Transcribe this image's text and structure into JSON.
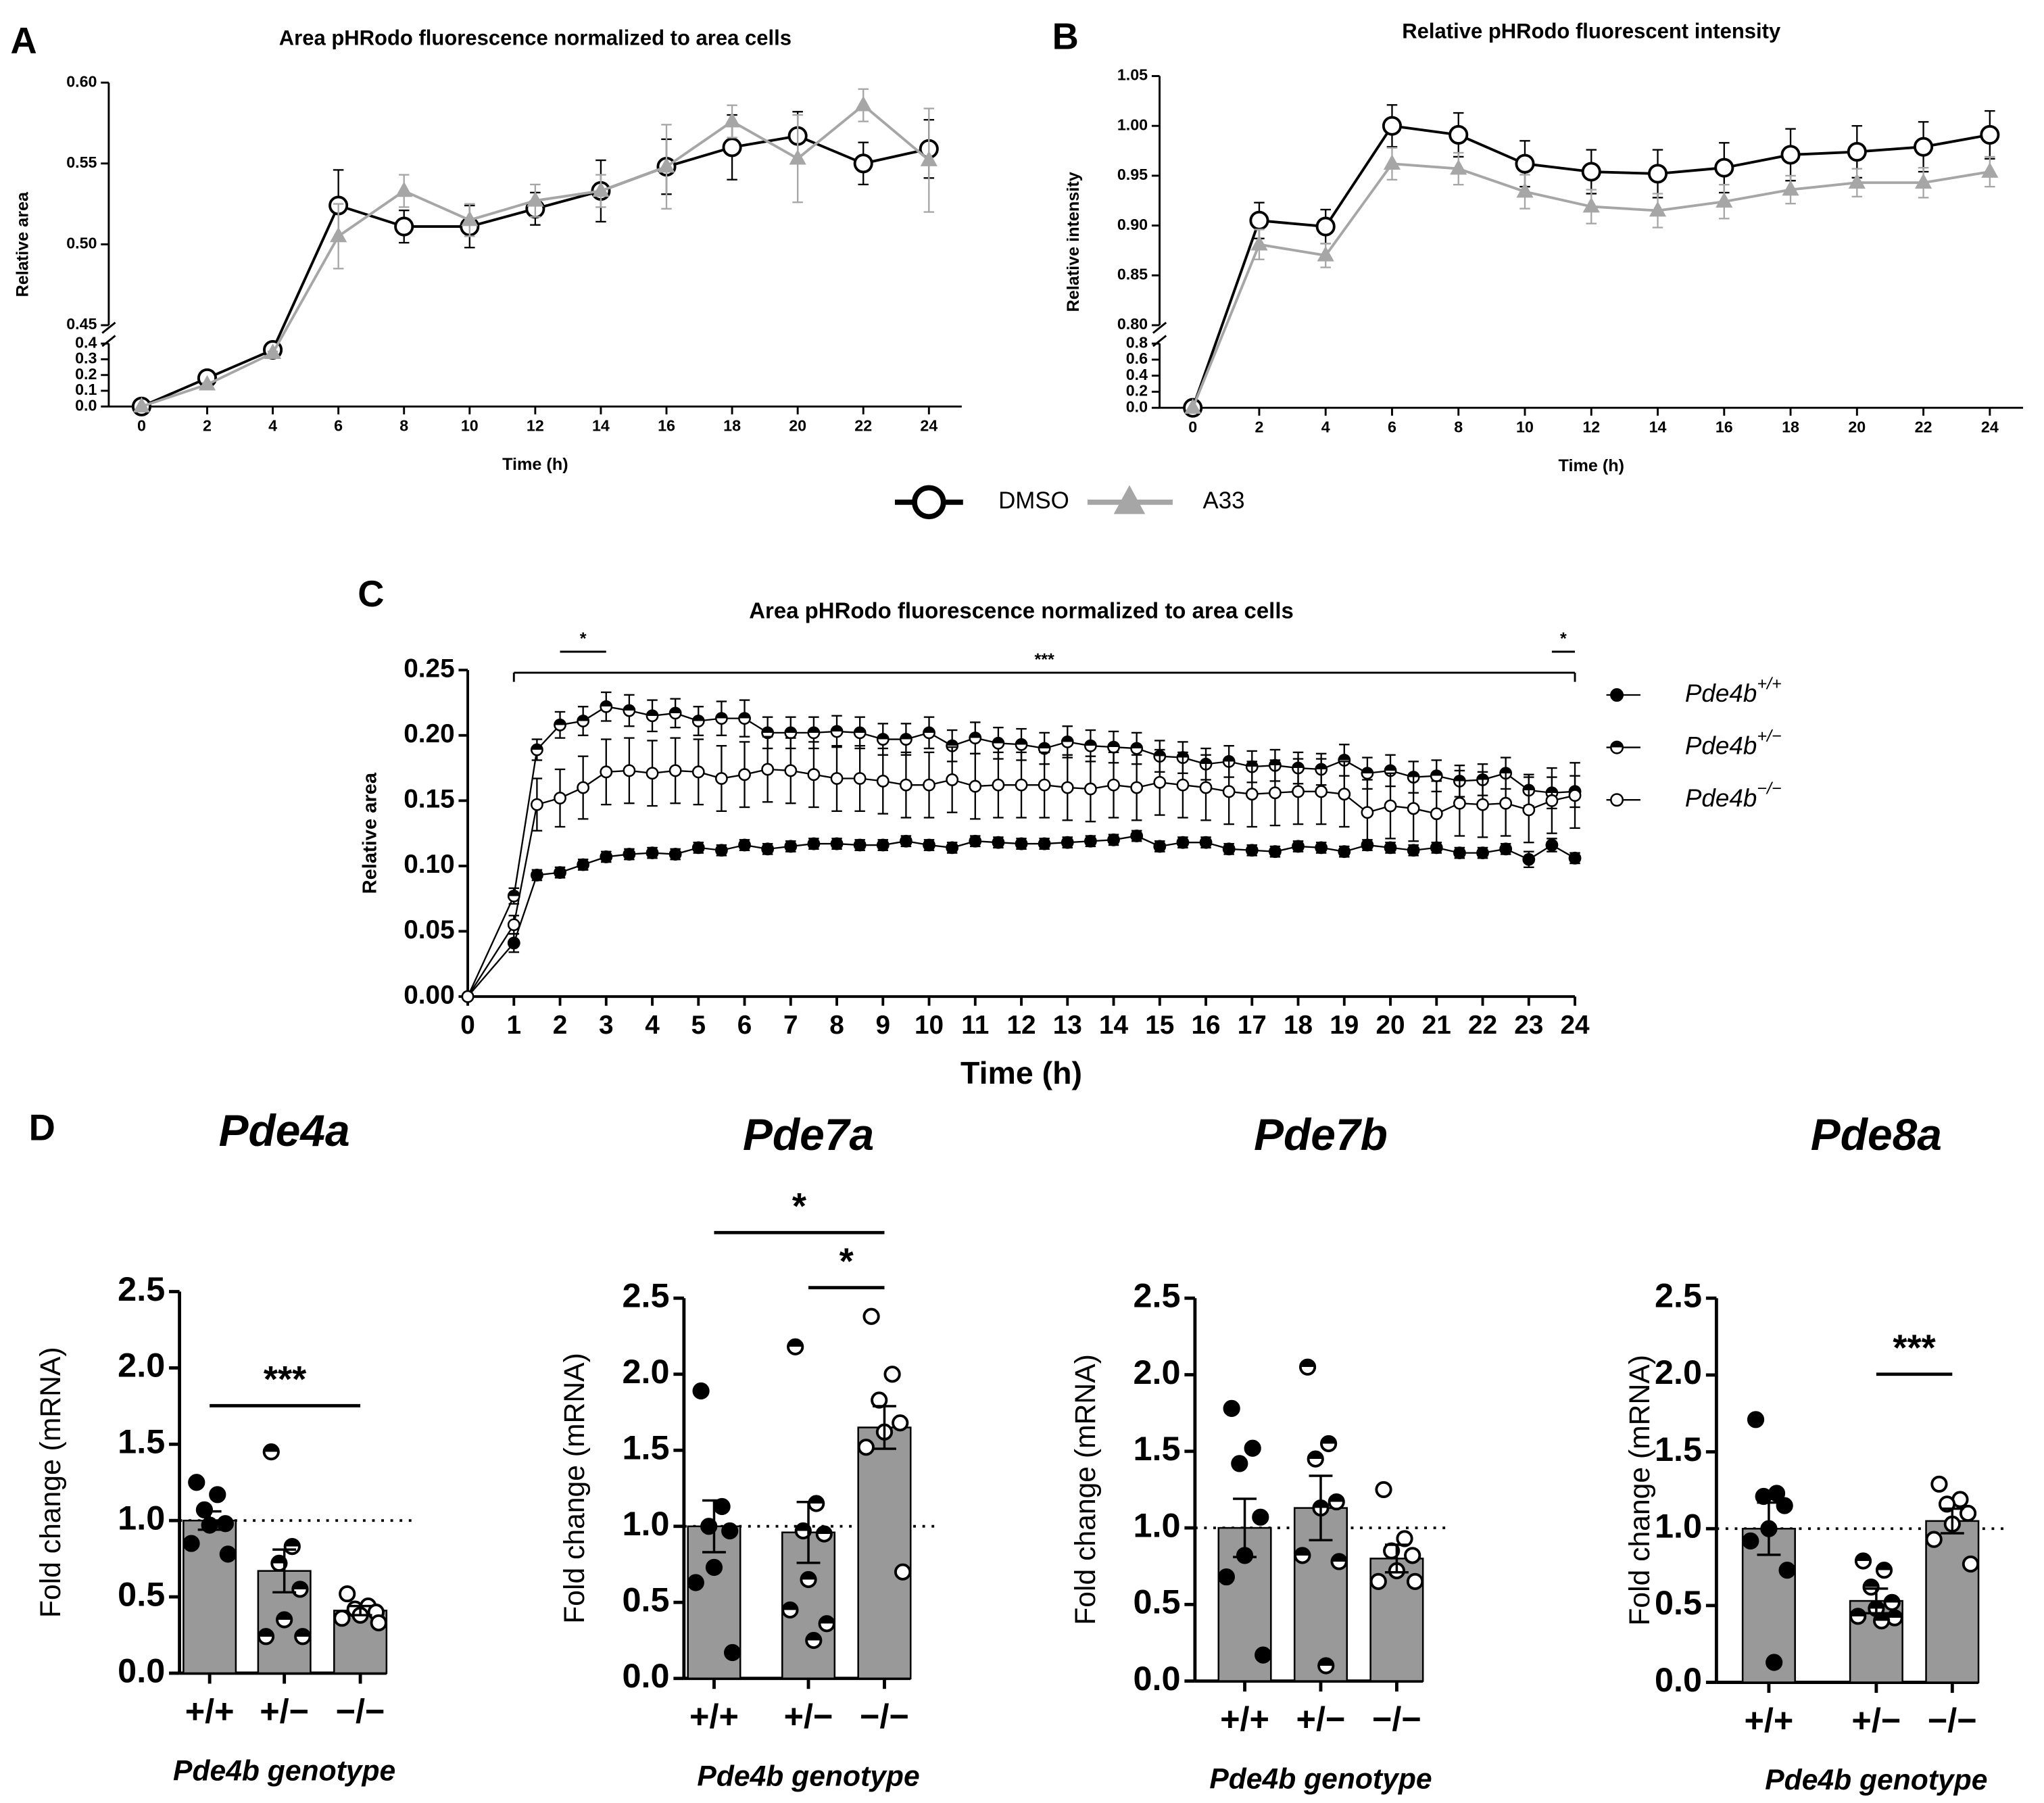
{
  "chart_data": [
    {
      "type": "line",
      "panel": "A",
      "title": "Area pHRodo fluorescence normalized to area cells",
      "x_label": "Time (h)",
      "y_label": "Relative area",
      "x": [
        0,
        2,
        4,
        6,
        8,
        10,
        12,
        14,
        16,
        18,
        20,
        22,
        24
      ],
      "xlim": [
        -1,
        25
      ],
      "xticks": [
        0,
        2,
        4,
        6,
        8,
        10,
        12,
        14,
        16,
        18,
        20,
        22,
        24
      ],
      "ysegments": [
        {
          "lim": [
            0,
            0.4
          ],
          "ticks": [
            {
              "value": 0,
              "label": "0.0"
            },
            0.1,
            0.2,
            0.3,
            0.4
          ]
        },
        {
          "lim": [
            0.45,
            0.6
          ],
          "ticks": [
            0.45,
            {
              "value": 0.5,
              "label": "0.50"
            },
            0.55,
            {
              "value": 0.6,
              "label": "0.60"
            }
          ]
        }
      ],
      "legend": "bottom",
      "series": [
        {
          "name": "DMSO",
          "color": "#000000",
          "marker": "open-circle",
          "values": [
            0,
            0.18,
            0.36,
            0.524,
            0.511,
            0.511,
            0.522,
            0.533,
            0.548,
            0.56,
            0.567,
            0.55,
            0.559
          ],
          "errors": [
            0,
            0.01,
            0.01,
            0.022,
            0.01,
            0.013,
            0.01,
            0.019,
            0.017,
            0.02,
            0.015,
            0.013,
            0.018
          ]
        },
        {
          "name": "A33",
          "color": "#a6a6a6",
          "marker": "triangle",
          "values": [
            0,
            0.14,
            0.34,
            0.505,
            0.533,
            0.515,
            0.527,
            0.533,
            0.548,
            0.576,
            0.553,
            0.586,
            0.552
          ],
          "errors": [
            0,
            0.01,
            0.01,
            0.02,
            0.01,
            0.01,
            0.01,
            0.01,
            0.026,
            0.01,
            0.027,
            0.01,
            0.032
          ]
        }
      ]
    },
    {
      "type": "line",
      "panel": "B",
      "title": "Relative pHRodo fluorescent intensity",
      "x_label": "Time (h)",
      "y_label": "Relative intensity",
      "x": [
        0,
        2,
        4,
        6,
        8,
        10,
        12,
        14,
        16,
        18,
        20,
        22,
        24
      ],
      "xlim": [
        -1,
        25
      ],
      "xticks": [
        0,
        2,
        4,
        6,
        8,
        10,
        12,
        14,
        16,
        18,
        20,
        22,
        24
      ],
      "ysegments": [
        {
          "lim": [
            0,
            0.8
          ],
          "ticks": [
            {
              "value": 0,
              "label": "0.0"
            },
            0.2,
            0.4,
            0.6,
            0.8
          ]
        },
        {
          "lim": [
            0.8,
            1.05
          ],
          "ticks": [
            {
              "value": 0.8,
              "label": "0.80"
            },
            0.85,
            {
              "value": 0.9,
              "label": "0.90"
            },
            0.95,
            {
              "value": 1,
              "label": "1.00"
            },
            1.05
          ]
        }
      ],
      "series": [
        {
          "color": "#000000",
          "marker": "open-circle",
          "values": [
            0,
            0.905,
            0.899,
            1.0,
            0.991,
            0.962,
            0.954,
            0.952,
            0.958,
            0.971,
            0.974,
            0.979,
            0.991
          ],
          "errors": [
            0,
            0.018,
            0.017,
            0.021,
            0.022,
            0.023,
            0.022,
            0.024,
            0.025,
            0.026,
            0.026,
            0.025,
            0.024
          ]
        },
        {
          "color": "#a6a6a6",
          "marker": "triangle",
          "values": [
            0,
            0.881,
            0.87,
            0.962,
            0.957,
            0.934,
            0.919,
            0.915,
            0.924,
            0.936,
            0.943,
            0.943,
            0.954
          ],
          "errors": [
            0,
            0.015,
            0.012,
            0.016,
            0.016,
            0.017,
            0.017,
            0.017,
            0.017,
            0.014,
            0.014,
            0.015,
            0.015
          ]
        }
      ]
    },
    {
      "type": "line",
      "panel": "C",
      "title": "Area pHRodo fluorescence normalized to area cells",
      "x_label": "Time (h)",
      "y_label": "Relative area",
      "x": [
        0,
        1,
        1.5,
        2,
        2.5,
        3,
        3.5,
        4,
        4.5,
        5,
        5.5,
        6,
        6.5,
        7,
        7.5,
        8,
        8.5,
        9,
        9.5,
        10,
        10.5,
        11,
        11.5,
        12,
        12.5,
        13,
        13.5,
        14,
        14.5,
        15,
        15.5,
        16,
        16.5,
        17,
        17.5,
        18,
        18.5,
        19,
        19.5,
        20,
        20.5,
        21,
        21.5,
        22,
        22.5,
        23,
        23.5,
        24
      ],
      "xlim": [
        0,
        24
      ],
      "xticks": [
        0,
        1,
        2,
        3,
        4,
        5,
        6,
        7,
        8,
        9,
        10,
        11,
        12,
        13,
        14,
        15,
        16,
        17,
        18,
        19,
        20,
        21,
        22,
        23,
        24
      ],
      "ylim": [
        0,
        0.25
      ],
      "yticks": [
        {
          "value": 0,
          "label": "0.00"
        },
        0.05,
        {
          "value": 0.1,
          "label": "0.10"
        },
        0.15,
        {
          "value": 0.2,
          "label": "0.20"
        },
        0.25
      ],
      "legend": "right",
      "annotations": [
        {
          "label": "*",
          "x": [
            2,
            3
          ]
        },
        {
          "label": "***",
          "x": [
            1,
            24
          ]
        },
        {
          "label": "*",
          "x": [
            23.5,
            24
          ]
        }
      ],
      "series": [
        {
          "name": "Pde4b",
          "genotype": "+/+",
          "color": "#000000",
          "marker": "filled-circle",
          "values": [
            0,
            0.041,
            0.093,
            0.095,
            0.101,
            0.107,
            0.109,
            0.11,
            0.109,
            0.114,
            0.112,
            0.116,
            0.113,
            0.115,
            0.117,
            0.117,
            0.116,
            0.116,
            0.119,
            0.116,
            0.114,
            0.119,
            0.118,
            0.117,
            0.117,
            0.118,
            0.119,
            0.12,
            0.123,
            0.115,
            0.118,
            0.118,
            0.113,
            0.112,
            0.111,
            0.115,
            0.114,
            0.111,
            0.116,
            0.114,
            0.112,
            0.114,
            0.11,
            0.11,
            0.113,
            0.105,
            0.116,
            0.106
          ],
          "errors": [
            0,
            0.007,
            0.004,
            0.004,
            0.004,
            0.004,
            0.004,
            0.004,
            0.004,
            0.004,
            0.004,
            0.004,
            0.004,
            0.004,
            0.004,
            0.004,
            0.004,
            0.004,
            0.004,
            0.004,
            0.004,
            0.004,
            0.004,
            0.004,
            0.004,
            0.004,
            0.004,
            0.004,
            0.004,
            0.004,
            0.004,
            0.004,
            0.004,
            0.004,
            0.004,
            0.004,
            0.004,
            0.004,
            0.004,
            0.004,
            0.004,
            0.004,
            0.004,
            0.004,
            0.004,
            0.006,
            0.005,
            0.004
          ]
        },
        {
          "name": "Pde4b",
          "genotype": "+/−",
          "color": "#000000",
          "marker": "half-circle",
          "values": [
            0,
            0.077,
            0.189,
            0.208,
            0.211,
            0.222,
            0.219,
            0.215,
            0.217,
            0.211,
            0.213,
            0.213,
            0.202,
            0.202,
            0.202,
            0.203,
            0.202,
            0.197,
            0.197,
            0.202,
            0.192,
            0.198,
            0.194,
            0.193,
            0.19,
            0.195,
            0.192,
            0.191,
            0.19,
            0.184,
            0.183,
            0.178,
            0.18,
            0.176,
            0.177,
            0.175,
            0.174,
            0.181,
            0.171,
            0.173,
            0.168,
            0.169,
            0.165,
            0.166,
            0.171,
            0.158,
            0.156,
            0.157
          ],
          "errors": [
            0,
            0.006,
            0.008,
            0.01,
            0.011,
            0.011,
            0.012,
            0.012,
            0.011,
            0.011,
            0.013,
            0.014,
            0.012,
            0.012,
            0.012,
            0.012,
            0.012,
            0.012,
            0.012,
            0.012,
            0.012,
            0.012,
            0.012,
            0.012,
            0.012,
            0.012,
            0.012,
            0.012,
            0.012,
            0.012,
            0.012,
            0.012,
            0.012,
            0.012,
            0.012,
            0.012,
            0.012,
            0.012,
            0.012,
            0.012,
            0.012,
            0.012,
            0.012,
            0.012,
            0.012,
            0.012,
            0.012,
            0.012
          ]
        },
        {
          "name": "Pde4b",
          "genotype": "−/−",
          "color": "#000000",
          "marker": "open-circle",
          "values": [
            0,
            0.055,
            0.147,
            0.152,
            0.16,
            0.172,
            0.173,
            0.171,
            0.173,
            0.172,
            0.167,
            0.17,
            0.174,
            0.173,
            0.17,
            0.167,
            0.167,
            0.165,
            0.162,
            0.162,
            0.166,
            0.161,
            0.162,
            0.162,
            0.162,
            0.16,
            0.159,
            0.162,
            0.16,
            0.164,
            0.162,
            0.16,
            0.157,
            0.155,
            0.156,
            0.157,
            0.157,
            0.155,
            0.141,
            0.146,
            0.144,
            0.14,
            0.148,
            0.147,
            0.148,
            0.143,
            0.15,
            0.154
          ],
          "errors": [
            0,
            0.007,
            0.02,
            0.022,
            0.024,
            0.025,
            0.025,
            0.025,
            0.025,
            0.025,
            0.025,
            0.025,
            0.025,
            0.025,
            0.025,
            0.025,
            0.025,
            0.025,
            0.025,
            0.025,
            0.025,
            0.025,
            0.025,
            0.025,
            0.025,
            0.025,
            0.025,
            0.025,
            0.025,
            0.025,
            0.025,
            0.025,
            0.025,
            0.025,
            0.025,
            0.025,
            0.025,
            0.025,
            0.025,
            0.025,
            0.025,
            0.025,
            0.025,
            0.025,
            0.025,
            0.025,
            0.025,
            0.025
          ]
        }
      ]
    },
    {
      "type": "bar",
      "panel": "D",
      "title": "Pde4a",
      "x_label": "Pde4b genotype",
      "y_label": "Fold change (mRNA)",
      "color": "#999999",
      "categories": [
        "+/+",
        "+/−",
        "−/−"
      ],
      "values": [
        1.0,
        0.67,
        0.41
      ],
      "errors": [
        0.06,
        0.14,
        0.03
      ],
      "points": [
        [
          1.25,
          1.17,
          1.07,
          0.98,
          0.97,
          0.85,
          0.78
        ],
        [
          1.45,
          0.83,
          0.72,
          0.55,
          0.35,
          0.24,
          0.24
        ],
        [
          0.52,
          0.44,
          0.42,
          0.4,
          0.38,
          0.36,
          0.33
        ]
      ],
      "markers": [
        "filled-circle",
        "half-circle",
        "open-circle"
      ],
      "reference_line": 1,
      "ylim": [
        0,
        2.5
      ],
      "yticks": [
        {
          "value": 0,
          "label": "0.0"
        },
        0.5,
        {
          "value": 1,
          "label": "1.0"
        },
        1.5,
        {
          "value": 2,
          "label": "2.0"
        },
        2.5
      ],
      "annotations": [
        {
          "label": "***",
          "from": 0,
          "to": 2
        }
      ]
    },
    {
      "type": "bar",
      "title": "Pde7a",
      "x_label": "Pde4b genotype",
      "y_label": "Fold change (mRNA)",
      "color": "#999999",
      "categories": [
        "+/+",
        "+/−",
        "−/−"
      ],
      "values": [
        1.0,
        0.96,
        1.65
      ],
      "errors": [
        0.17,
        0.2,
        0.14
      ],
      "points": [
        [
          1.89,
          1.13,
          1.0,
          0.97,
          0.73,
          0.63,
          0.17
        ],
        [
          2.18,
          1.15,
          0.97,
          0.95,
          0.65,
          0.45,
          0.36,
          0.25
        ],
        [
          2.38,
          2.0,
          1.83,
          1.68,
          1.62,
          1.52,
          0.7
        ]
      ],
      "markers": [
        "filled-circle",
        "half-circle",
        "open-circle"
      ],
      "reference_line": 1,
      "ylim": [
        0,
        2.5
      ],
      "yticks": [
        {
          "value": 0,
          "label": "0.0"
        },
        0.5,
        {
          "value": 1,
          "label": "1.0"
        },
        1.5,
        {
          "value": 2,
          "label": "2.0"
        },
        2.5
      ],
      "annotations": [
        {
          "label": "*",
          "from": 0,
          "to": 2
        },
        {
          "label": "*",
          "from": 1,
          "to": 2
        }
      ]
    },
    {
      "type": "bar",
      "title": "Pde7b",
      "x_label": "Pde4b genotype",
      "y_label": "Fold change (mRNA)",
      "color": "#999999",
      "categories": [
        "+/+",
        "+/−",
        "−/−"
      ],
      "values": [
        1.0,
        1.13,
        0.8
      ],
      "errors": [
        0.19,
        0.21,
        0.09
      ],
      "points": [
        [
          1.78,
          1.52,
          1.42,
          1.07,
          0.82,
          0.68,
          0.17
        ],
        [
          2.05,
          1.55,
          1.45,
          1.17,
          1.13,
          0.82,
          0.78,
          0.1
        ],
        [
          1.25,
          0.93,
          0.85,
          0.82,
          0.72,
          0.65,
          0.65
        ]
      ],
      "markers": [
        "filled-circle",
        "half-circle",
        "open-circle"
      ],
      "reference_line": 1,
      "ylim": [
        0,
        2.5
      ],
      "yticks": [
        {
          "value": 0,
          "label": "0.0"
        },
        0.5,
        {
          "value": 1,
          "label": "1.0"
        },
        1.5,
        {
          "value": 2,
          "label": "2.0"
        },
        2.5
      ]
    },
    {
      "type": "bar",
      "title": "Pde8a",
      "x_label": "Pde4b genotype",
      "y_label": "Fold change (mRNA)",
      "color": "#999999",
      "categories": [
        "+/+",
        "+/−",
        "−/−"
      ],
      "values": [
        1.0,
        0.53,
        1.05
      ],
      "errors": [
        0.17,
        0.08,
        0.08
      ],
      "points": [
        [
          1.71,
          1.23,
          1.21,
          1.15,
          1.0,
          0.92,
          0.73,
          0.13
        ],
        [
          0.79,
          0.73,
          0.62,
          0.52,
          0.48,
          0.43,
          0.42,
          0.4
        ],
        [
          1.29,
          1.19,
          1.16,
          1.1,
          1.03,
          0.93,
          0.77
        ]
      ],
      "markers": [
        "filled-circle",
        "half-circle",
        "open-circle"
      ],
      "reference_line": 1,
      "ylim": [
        0,
        2.5
      ],
      "yticks": [
        {
          "value": 0,
          "label": "0.0"
        },
        0.5,
        {
          "value": 1,
          "label": "1.0"
        },
        1.5,
        {
          "value": 2,
          "label": "2.0"
        },
        2.5
      ],
      "annotations": [
        {
          "label": "***",
          "from": 1,
          "to": 2
        }
      ]
    }
  ]
}
